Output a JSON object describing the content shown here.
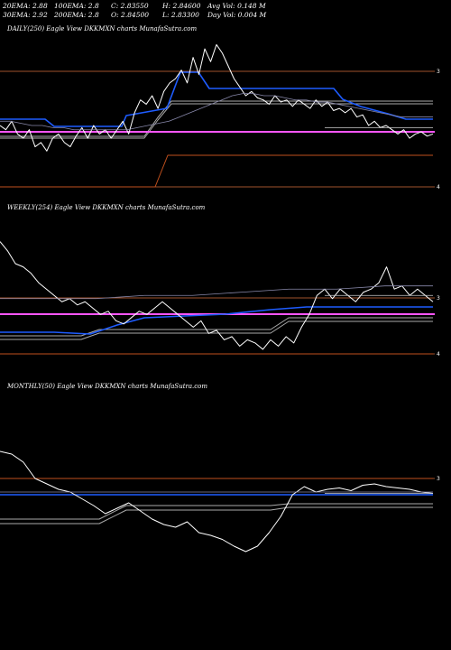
{
  "header": {
    "row1": [
      {
        "label": "20EMA: 2.88"
      },
      {
        "label": "100EMA: 2.8"
      },
      {
        "label": "C: 2.83550"
      },
      {
        "label": "H: 2.84600"
      },
      {
        "label": "Avg Vol: 0.148  M"
      }
    ],
    "row2": [
      {
        "label": "30EMA: 2.92"
      },
      {
        "label": "200EMA: 2.8"
      },
      {
        "label": "O: 2.84500"
      },
      {
        "label": "L: 2.83300"
      },
      {
        "label": "Day Vol: 0.004  M"
      }
    ]
  },
  "colors": {
    "background": "#000000",
    "price": "#ffffff",
    "ema_short": "#1e5cff",
    "ema_long": "#ff55ff",
    "level_line": "#a0522d",
    "stop_line": "#c0501e",
    "channel": "#aaaaaa"
  },
  "chart_data": [
    {
      "type": "line",
      "title": "DAILY(250) Eagle  View  DKKMXN  charts MunafaSutra.com",
      "level_labels": [
        "3",
        "4"
      ],
      "series": [
        {
          "values": [
            2.88,
            2.86,
            2.9,
            2.84,
            2.82,
            2.86,
            2.78,
            2.8,
            2.76,
            2.82,
            2.84,
            2.8,
            2.78,
            2.83,
            2.87,
            2.82,
            2.88,
            2.84,
            2.86,
            2.82,
            2.86,
            2.9,
            2.84,
            2.94,
            3.0,
            2.98,
            3.02,
            2.96,
            3.04,
            3.08,
            3.1,
            3.14,
            3.08,
            3.2,
            3.12,
            3.24,
            3.18,
            3.26,
            3.22,
            3.16,
            3.1,
            3.06,
            3.02,
            3.04,
            3.01,
            3.0,
            2.98,
            3.02,
            2.99,
            3.0,
            2.97,
            3.0,
            2.98,
            2.96,
            3.0,
            2.97,
            2.99,
            2.95,
            2.96,
            2.94,
            2.96,
            2.92,
            2.93,
            2.88,
            2.9,
            2.87,
            2.88,
            2.86,
            2.84,
            2.86,
            2.82,
            2.84,
            2.85,
            2.83,
            2.84
          ]
        },
        {
          "values": [
            2.9,
            2.9,
            2.89,
            2.88,
            2.88,
            2.87,
            2.87,
            2.86,
            2.86,
            2.86,
            2.86,
            2.86,
            2.86,
            2.87,
            2.88,
            2.89,
            2.9,
            2.92,
            2.94,
            2.96,
            2.98,
            3.0,
            3.02,
            3.03,
            3.03,
            3.02,
            3.02,
            3.01,
            3.0,
            3.0,
            2.99,
            2.99,
            2.98,
            2.97,
            2.96,
            2.95,
            2.94,
            2.93,
            2.92,
            2.92,
            2.92,
            2.92
          ]
        },
        {
          "values": [
            2.87,
            2.87,
            2.87,
            2.87,
            2.87,
            2.87,
            2.87,
            2.87,
            2.87,
            2.87
          ]
        }
      ]
    },
    {
      "type": "line",
      "title": "WEEKLY(254) Eagle  View  DKKMXN  charts MunafaSutra.com",
      "level_labels": [
        "3",
        "4"
      ],
      "series": [
        {
          "values": [
            3.05,
            3.02,
            2.98,
            2.97,
            2.95,
            2.92,
            2.9,
            2.88,
            2.86,
            2.87,
            2.85,
            2.86,
            2.84,
            2.82,
            2.83,
            2.8,
            2.79,
            2.81,
            2.83,
            2.82,
            2.84,
            2.86,
            2.84,
            2.82,
            2.8,
            2.78,
            2.8,
            2.76,
            2.77,
            2.74,
            2.75,
            2.72,
            2.74,
            2.73,
            2.71,
            2.74,
            2.72,
            2.75,
            2.73,
            2.78,
            2.82,
            2.88,
            2.9,
            2.87,
            2.9,
            2.88,
            2.86,
            2.89,
            2.9,
            2.92,
            2.97,
            2.9,
            2.91,
            2.88,
            2.9,
            2.88,
            2.86
          ]
        },
        {
          "values": [
            2.87,
            2.87,
            2.87,
            2.88,
            2.88,
            2.89,
            2.9,
            2.9,
            2.91,
            2.91
          ]
        },
        {
          "values": [
            2.88,
            2.88,
            2.88,
            2.88,
            2.88,
            2.88,
            2.88,
            2.88,
            2.88
          ]
        }
      ]
    },
    {
      "type": "line",
      "title": "MONTHLY(50) Eagle  View  DKKMXN  charts MunafaSutra.com",
      "level_labels": [
        "3"
      ],
      "series": [
        {
          "values": [
            3.2,
            3.18,
            3.12,
            3.0,
            2.96,
            2.92,
            2.9,
            2.85,
            2.8,
            2.74,
            2.78,
            2.82,
            2.76,
            2.7,
            2.66,
            2.64,
            2.68,
            2.6,
            2.58,
            2.55,
            2.5,
            2.46,
            2.5,
            2.6,
            2.72,
            2.88,
            2.94,
            2.9,
            2.92,
            2.93,
            2.91,
            2.95,
            2.96,
            2.94,
            2.93,
            2.92,
            2.9,
            2.89
          ]
        },
        {
          "values": [
            2.9,
            2.9,
            2.9,
            2.9,
            2.9,
            2.9,
            2.9,
            2.9,
            2.9
          ]
        },
        {
          "values": [
            2.89,
            2.89,
            2.89,
            2.89,
            2.89,
            2.89,
            2.89,
            2.89
          ]
        }
      ]
    }
  ]
}
